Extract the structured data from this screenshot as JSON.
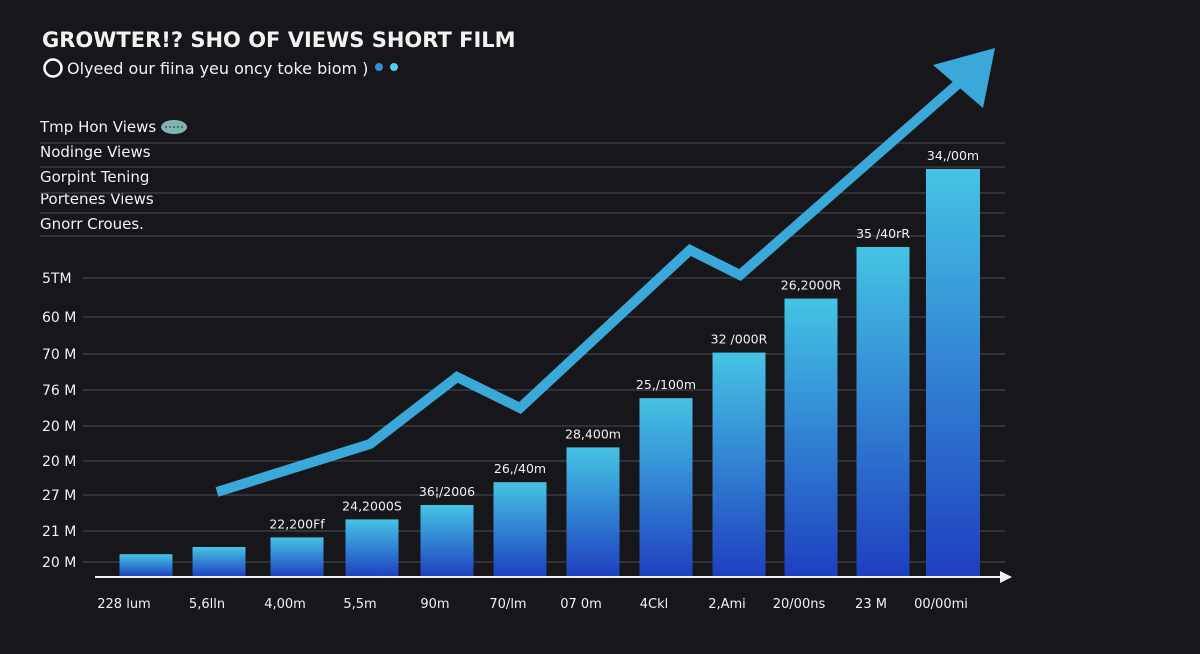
{
  "title": "GROWTER!? SHO OF VIEWS SHORT FILM",
  "subtitle": "Olyeed our fiina yeu oncy toke biom )",
  "legend_dots": [
    "#2f8fd8",
    "#4fd0ec"
  ],
  "side_labels": [
    "Tmp Hon Views",
    "Nodinge Views",
    "Gorpint Tening",
    "Portenes Views",
    "Gnorr Croues."
  ],
  "colors": {
    "background": "#16161b",
    "bar_top": "#45c4e4",
    "bar_bottom": "#1e3fc0",
    "trend_line": "#3aa9d9",
    "badge": "#7fb5b0"
  },
  "chart_data": {
    "type": "bar",
    "title": "GROWTER!? SHO OF VIEWS SHORT FILM",
    "categories": [
      "228 lum",
      "5,6lln",
      "4,00m",
      "5,5m",
      "90m",
      "70/lm",
      "07 0m",
      "4Ckl",
      "2,Ami",
      "20/00ns",
      "23 M",
      "00/00mi"
    ],
    "values": [
      1.9,
      2.5,
      3.3,
      4.8,
      6.0,
      7.9,
      10.8,
      14.9,
      18.7,
      23.2,
      27.5,
      34.0
    ],
    "data_labels": [
      "",
      "",
      "22,200Ff",
      "24,2000S",
      "36¦/2006",
      "26,/40m",
      "28,400m",
      "25,/100m",
      "32 /000R",
      "26,2000R",
      "35 /40rR",
      "34,/00m"
    ],
    "y_tick_labels": [
      "5TM",
      "60 M",
      "70 M",
      "76 M",
      "20 M",
      "20 M",
      "27 M",
      "21 M",
      "20 M"
    ],
    "trend_line": {
      "type": "line",
      "arrow": true,
      "values": [
        7,
        11,
        16.5,
        14,
        27,
        25,
        42
      ]
    },
    "ylim": [
      0,
      40
    ],
    "grid": true,
    "legend": "none"
  }
}
